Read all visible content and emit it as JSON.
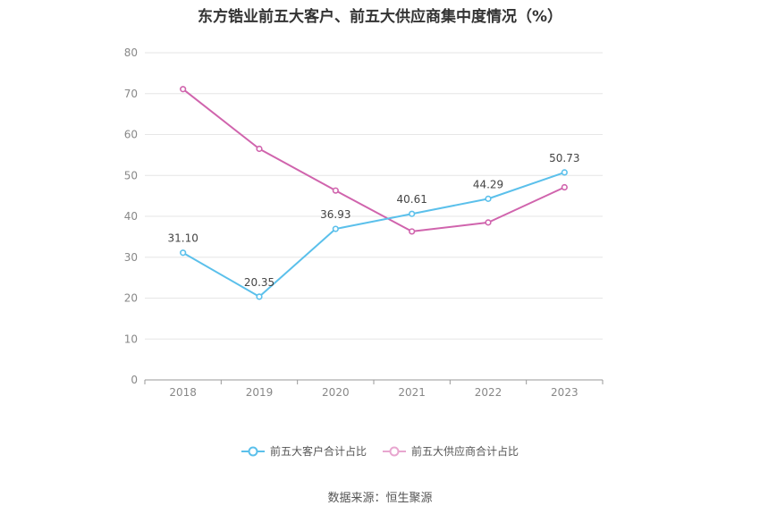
{
  "chart_data": {
    "type": "line",
    "title": "东方锆业前五大客户、前五大供应商集中度情况（%）",
    "categories": [
      "2018",
      "2019",
      "2020",
      "2021",
      "2022",
      "2023"
    ],
    "ylim": [
      0,
      80
    ],
    "yticks": [
      0,
      10,
      20,
      30,
      40,
      50,
      60,
      70,
      80
    ],
    "grid": true,
    "legend_position": "bottom-center",
    "series": [
      {
        "name": "前五大客户合计占比",
        "values": [
          31.1,
          20.35,
          36.93,
          40.61,
          44.29,
          50.73
        ],
        "labels": [
          "31.10",
          "20.35",
          "36.93",
          "40.61",
          "44.29",
          "50.73"
        ],
        "color": "#5bc0eb"
      },
      {
        "name": "前五大供应商合计占比",
        "values": [
          71.1,
          56.5,
          46.3,
          36.3,
          38.5,
          47.1
        ],
        "color": "#d064ad"
      }
    ]
  },
  "source": "数据来源：恒生聚源"
}
